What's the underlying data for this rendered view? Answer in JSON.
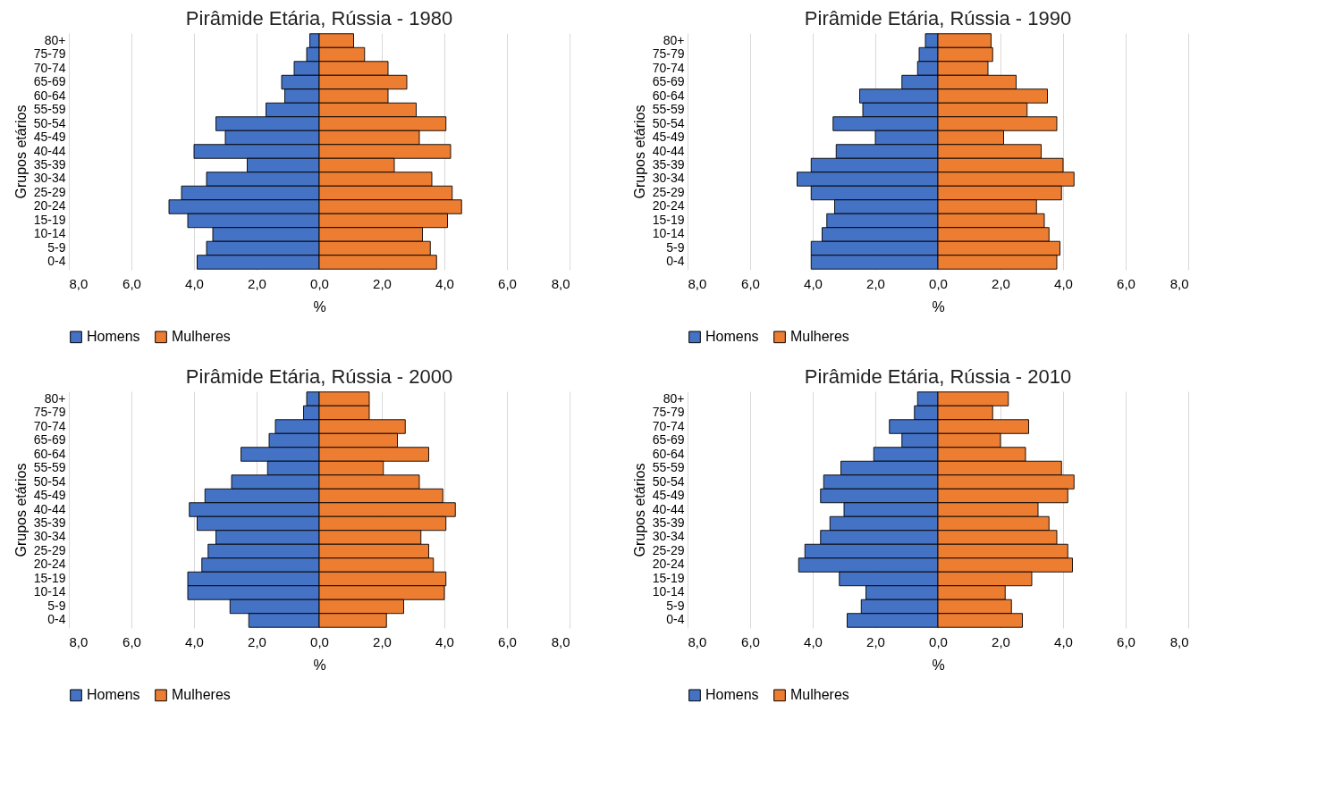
{
  "chart_data": [
    {
      "type": "bar",
      "orientation": "horizontal",
      "title": "Pirâmide Etária, Rússia - 1980",
      "stacked": true,
      "xlabel": "%",
      "ylabel": "Grupos etários",
      "categories": [
        "80+",
        "75-79",
        "70-74",
        "65-69",
        "60-64",
        "55-59",
        "50-54",
        "45-49",
        "40-44",
        "35-39",
        "30-34",
        "25-29",
        "20-24",
        "15-19",
        "10-14",
        "5-9",
        "0-4"
      ],
      "series": [
        {
          "name": "Homens",
          "color": "#4472c4",
          "values": [
            -0.3,
            -0.4,
            -0.8,
            -1.2,
            -1.1,
            -1.7,
            -3.3,
            -3.0,
            -4.0,
            -2.3,
            -3.6,
            -4.4,
            -4.8,
            -4.2,
            -3.4,
            -3.6,
            -3.9
          ]
        },
        {
          "name": "Mulheres",
          "color": "#ed7d31",
          "values": [
            1.1,
            1.45,
            2.2,
            2.8,
            2.2,
            3.1,
            4.05,
            3.2,
            4.2,
            2.4,
            3.6,
            4.25,
            4.55,
            4.1,
            3.3,
            3.55,
            3.75
          ]
        }
      ],
      "xlim": [
        -8,
        8
      ],
      "xticks": [
        {
          "value": -8,
          "label": "8,0"
        },
        {
          "value": -6,
          "label": "6,0"
        },
        {
          "value": -4,
          "label": "4,0"
        },
        {
          "value": -2,
          "label": "2,0"
        },
        {
          "value": 0,
          "label": "0,0"
        },
        {
          "value": 2,
          "label": "2,0"
        },
        {
          "value": 4,
          "label": "4,0"
        },
        {
          "value": 6,
          "label": "6,0"
        },
        {
          "value": 8,
          "label": "8,0"
        }
      ],
      "grid": "x",
      "legend": "bottom"
    },
    {
      "type": "bar",
      "orientation": "horizontal",
      "title": "Pirâmide Etária, Rússia - 1990",
      "stacked": true,
      "xlabel": "%",
      "ylabel": "Grupos etários",
      "categories": [
        "80+",
        "75-79",
        "70-74",
        "65-69",
        "60-64",
        "55-59",
        "50-54",
        "45-49",
        "40-44",
        "35-39",
        "30-34",
        "25-29",
        "20-24",
        "15-19",
        "10-14",
        "5-9",
        "0-4"
      ],
      "series": [
        {
          "name": "Homens",
          "color": "#4472c4",
          "values": [
            -0.4,
            -0.6,
            -0.65,
            -1.15,
            -2.5,
            -2.4,
            -3.35,
            -2.0,
            -3.25,
            -4.05,
            -4.5,
            -4.05,
            -3.3,
            -3.55,
            -3.7,
            -4.05,
            -4.05
          ]
        },
        {
          "name": "Mulheres",
          "color": "#ed7d31",
          "values": [
            1.7,
            1.75,
            1.6,
            2.5,
            3.5,
            2.85,
            3.8,
            2.1,
            3.3,
            4.0,
            4.35,
            3.95,
            3.15,
            3.4,
            3.55,
            3.9,
            3.8
          ]
        }
      ],
      "xlim": [
        -8,
        8
      ],
      "xticks": [
        {
          "value": -8,
          "label": "8,0"
        },
        {
          "value": -6,
          "label": "6,0"
        },
        {
          "value": -4,
          "label": "4,0"
        },
        {
          "value": -2,
          "label": "2,0"
        },
        {
          "value": 0,
          "label": "0,0"
        },
        {
          "value": 2,
          "label": "2,0"
        },
        {
          "value": 4,
          "label": "4,0"
        },
        {
          "value": 6,
          "label": "6,0"
        },
        {
          "value": 8,
          "label": "8,0"
        }
      ],
      "grid": "x",
      "legend": "bottom"
    },
    {
      "type": "bar",
      "orientation": "horizontal",
      "title": "Pirâmide Etária, Rússia - 2000",
      "stacked": true,
      "xlabel": "%",
      "ylabel": "Grupos etários",
      "categories": [
        "80+",
        "75-79",
        "70-74",
        "65-69",
        "60-64",
        "55-59",
        "50-54",
        "45-49",
        "40-44",
        "35-39",
        "30-34",
        "25-29",
        "20-24",
        "15-19",
        "10-14",
        "5-9",
        "0-4"
      ],
      "series": [
        {
          "name": "Homens",
          "color": "#4472c4",
          "values": [
            -0.4,
            -0.5,
            -1.4,
            -1.6,
            -2.5,
            -1.65,
            -2.8,
            -3.65,
            -4.15,
            -3.9,
            -3.3,
            -3.55,
            -3.75,
            -4.2,
            -4.2,
            -2.85,
            -2.25
          ]
        },
        {
          "name": "Mulheres",
          "color": "#ed7d31",
          "values": [
            1.6,
            1.6,
            2.75,
            2.5,
            3.5,
            2.05,
            3.2,
            3.95,
            4.35,
            4.05,
            3.25,
            3.5,
            3.65,
            4.05,
            4.0,
            2.7,
            2.15
          ]
        }
      ],
      "xlim": [
        -8,
        8
      ],
      "xticks": [
        {
          "value": -8,
          "label": "8,0"
        },
        {
          "value": -6,
          "label": "6,0"
        },
        {
          "value": -4,
          "label": "4,0"
        },
        {
          "value": -2,
          "label": "2,0"
        },
        {
          "value": 0,
          "label": "0,0"
        },
        {
          "value": 2,
          "label": "2,0"
        },
        {
          "value": 4,
          "label": "4,0"
        },
        {
          "value": 6,
          "label": "6,0"
        },
        {
          "value": 8,
          "label": "8,0"
        }
      ],
      "grid": "x",
      "legend": "bottom"
    },
    {
      "type": "bar",
      "orientation": "horizontal",
      "title": "Pirâmide Etária, Rússia - 2010",
      "stacked": true,
      "xlabel": "%",
      "ylabel": "Grupos etários",
      "categories": [
        "80+",
        "75-79",
        "70-74",
        "65-69",
        "60-64",
        "55-59",
        "50-54",
        "45-49",
        "40-44",
        "35-39",
        "30-34",
        "25-29",
        "20-24",
        "15-19",
        "10-14",
        "5-9",
        "0-4"
      ],
      "series": [
        {
          "name": "Homens",
          "color": "#4472c4",
          "values": [
            -0.65,
            -0.75,
            -1.55,
            -1.15,
            -2.05,
            -3.1,
            -3.65,
            -3.75,
            -3.0,
            -3.45,
            -3.75,
            -4.25,
            -4.45,
            -3.15,
            -2.3,
            -2.45,
            -2.9
          ]
        },
        {
          "name": "Mulheres",
          "color": "#ed7d31",
          "values": [
            2.25,
            1.75,
            2.9,
            2.0,
            2.8,
            3.95,
            4.35,
            4.15,
            3.2,
            3.55,
            3.8,
            4.15,
            4.3,
            3.0,
            2.15,
            2.35,
            2.7
          ]
        }
      ],
      "xlim": [
        -8,
        8
      ],
      "xticks": [
        {
          "value": -8,
          "label": "8,0"
        },
        {
          "value": -6,
          "label": "6,0"
        },
        {
          "value": -4,
          "label": "4,0"
        },
        {
          "value": -2,
          "label": "2,0"
        },
        {
          "value": 0,
          "label": "0,0"
        },
        {
          "value": 2,
          "label": "2,0"
        },
        {
          "value": 4,
          "label": "4,0"
        },
        {
          "value": 6,
          "label": "6,0"
        },
        {
          "value": 8,
          "label": "8,0"
        }
      ],
      "grid": "x",
      "legend": "bottom"
    }
  ]
}
